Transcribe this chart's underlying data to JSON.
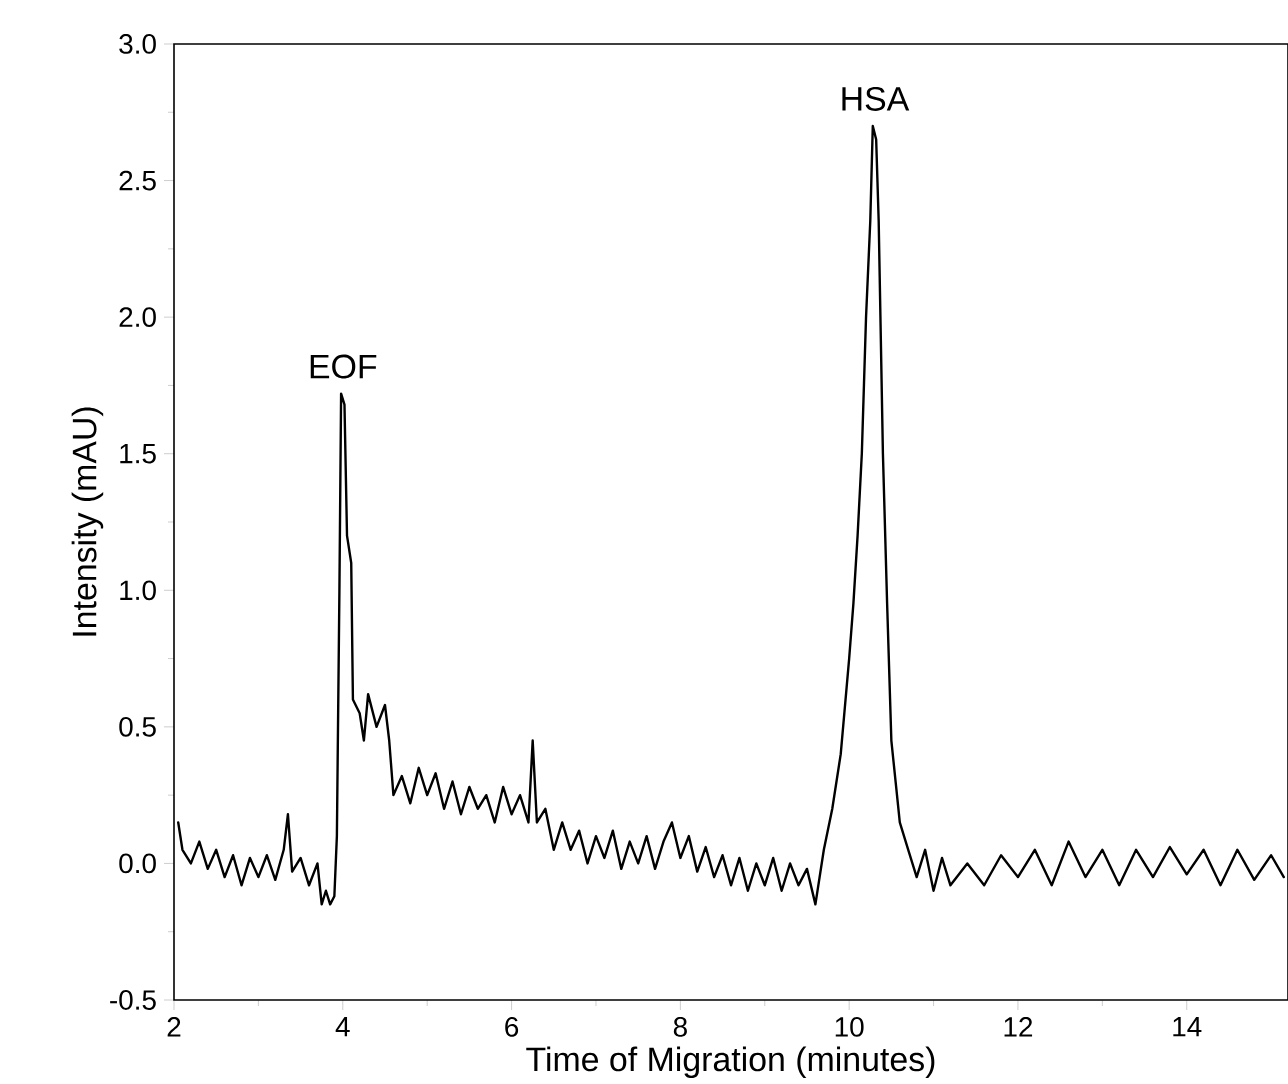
{
  "chart_data": {
    "type": "line",
    "xlabel": "Time of Migration (minutes)",
    "ylabel": "Intensity (mAU)",
    "xlim": [
      2,
      15.2
    ],
    "xticks": [
      2,
      4,
      6,
      8,
      10,
      12,
      14
    ],
    "ylim": [
      -0.5,
      3.0
    ],
    "yticks": [
      {
        "value": -0.5,
        "label": "-0.5"
      },
      {
        "value": 0,
        "label": "0.0"
      },
      {
        "value": 0.5,
        "label": "0.5"
      },
      {
        "value": 1.0,
        "label": "1.0"
      },
      {
        "value": 1.5,
        "label": "1.5"
      },
      {
        "value": 2.0,
        "label": "2.0"
      },
      {
        "value": 2.5,
        "label": "2.5"
      },
      {
        "value": 3.0,
        "label": "3.0"
      }
    ],
    "grid": false,
    "marker": "none",
    "line_style": "solid",
    "annotations": [
      {
        "text": "EOF",
        "x": 4,
        "y": 1.72
      },
      {
        "text": "HSA",
        "x": 10.3,
        "y": 2.7
      }
    ],
    "series": [
      {
        "color": "#000000",
        "x": [
          2.05,
          2.1,
          2.2,
          2.3,
          2.4,
          2.5,
          2.6,
          2.7,
          2.8,
          2.9,
          3.0,
          3.1,
          3.2,
          3.3,
          3.35,
          3.4,
          3.5,
          3.6,
          3.7,
          3.75,
          3.8,
          3.85,
          3.9,
          3.93,
          3.96,
          3.98,
          4.02,
          4.05,
          4.1,
          4.12,
          4.2,
          4.25,
          4.3,
          4.4,
          4.5,
          4.55,
          4.6,
          4.7,
          4.8,
          4.9,
          5.0,
          5.1,
          5.2,
          5.3,
          5.4,
          5.5,
          5.6,
          5.7,
          5.8,
          5.9,
          6.0,
          6.1,
          6.2,
          6.25,
          6.3,
          6.4,
          6.5,
          6.6,
          6.7,
          6.8,
          6.9,
          7.0,
          7.1,
          7.2,
          7.3,
          7.4,
          7.5,
          7.6,
          7.7,
          7.8,
          7.9,
          8.0,
          8.1,
          8.2,
          8.3,
          8.4,
          8.5,
          8.6,
          8.7,
          8.8,
          8.9,
          9.0,
          9.1,
          9.2,
          9.3,
          9.4,
          9.5,
          9.6,
          9.7,
          9.8,
          9.9,
          10.0,
          10.05,
          10.1,
          10.15,
          10.2,
          10.25,
          10.28,
          10.32,
          10.35,
          10.4,
          10.45,
          10.5,
          10.55,
          10.6,
          10.7,
          10.8,
          10.9,
          11.0,
          11.1,
          11.2,
          11.4,
          11.6,
          11.8,
          12.0,
          12.2,
          12.4,
          12.6,
          12.8,
          13.0,
          13.2,
          13.4,
          13.6,
          13.8,
          14.0,
          14.2,
          14.4,
          14.6,
          14.8,
          15.0,
          15.15
        ],
        "values": [
          0.15,
          0.05,
          0.0,
          0.08,
          -0.02,
          0.05,
          -0.05,
          0.03,
          -0.08,
          0.02,
          -0.05,
          0.03,
          -0.06,
          0.05,
          0.18,
          -0.03,
          0.02,
          -0.08,
          0.0,
          -0.15,
          -0.1,
          -0.15,
          -0.12,
          0.1,
          1.0,
          1.72,
          1.68,
          1.2,
          1.1,
          0.6,
          0.55,
          0.45,
          0.62,
          0.5,
          0.58,
          0.45,
          0.25,
          0.32,
          0.22,
          0.35,
          0.25,
          0.33,
          0.2,
          0.3,
          0.18,
          0.28,
          0.2,
          0.25,
          0.15,
          0.28,
          0.18,
          0.25,
          0.15,
          0.45,
          0.15,
          0.2,
          0.05,
          0.15,
          0.05,
          0.12,
          0.0,
          0.1,
          0.02,
          0.12,
          -0.02,
          0.08,
          0.0,
          0.1,
          -0.02,
          0.08,
          0.15,
          0.02,
          0.1,
          -0.03,
          0.06,
          -0.05,
          0.03,
          -0.08,
          0.02,
          -0.1,
          0.0,
          -0.08,
          0.02,
          -0.1,
          0.0,
          -0.08,
          -0.02,
          -0.15,
          0.05,
          0.2,
          0.4,
          0.75,
          0.95,
          1.2,
          1.5,
          2.0,
          2.35,
          2.7,
          2.65,
          2.35,
          1.5,
          0.95,
          0.45,
          0.3,
          0.15,
          0.05,
          -0.05,
          0.05,
          -0.1,
          0.02,
          -0.08,
          0.0,
          -0.08,
          0.03,
          -0.05,
          0.05,
          -0.08,
          0.08,
          -0.05,
          0.05,
          -0.08,
          0.05,
          -0.05,
          0.06,
          -0.04,
          0.05,
          -0.08,
          0.05,
          -0.06,
          0.03,
          -0.05
        ]
      }
    ]
  }
}
